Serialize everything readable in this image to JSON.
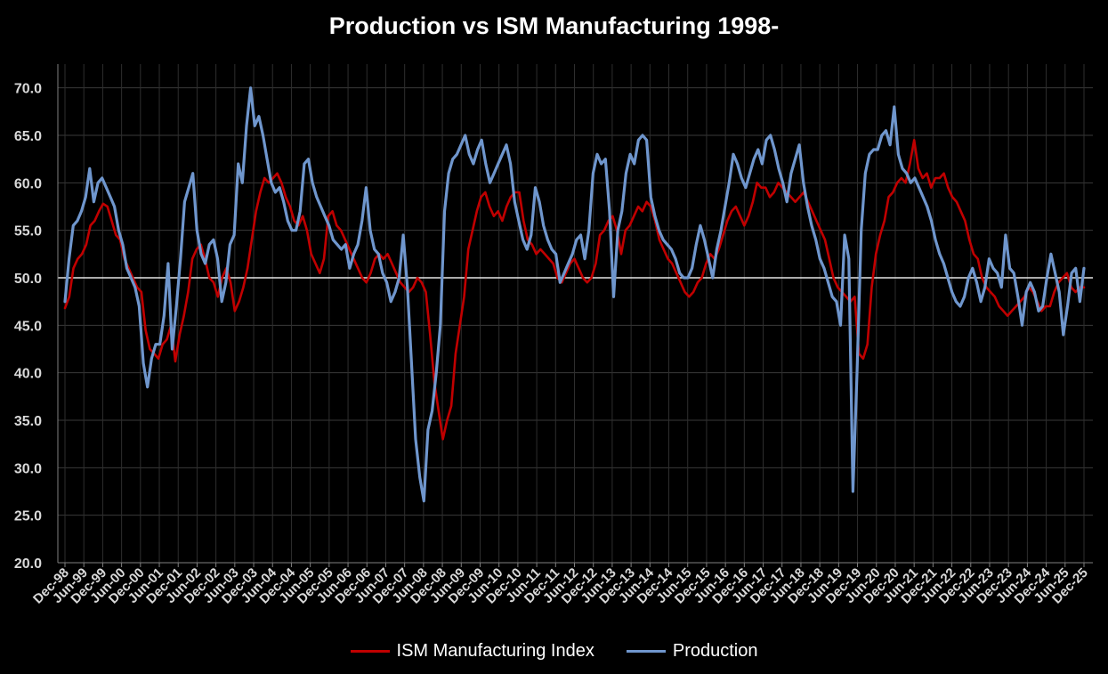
{
  "chart_data": {
    "type": "line",
    "title": "Production vs ISM Manufacturing 1998-",
    "xlabel": "",
    "ylabel": "",
    "ylim": [
      20,
      72.5
    ],
    "yticks": [
      "20.0",
      "25.0",
      "30.0",
      "35.0",
      "40.0",
      "45.0",
      "50.0",
      "55.0",
      "60.0",
      "65.0",
      "70.0"
    ],
    "reference_line": 50,
    "grid": true,
    "x_start": "Dec-98",
    "x_end": "Dec-25",
    "xticks": [
      "Dec-98",
      "Jun-99",
      "Dec-99",
      "Jun-00",
      "Dec-00",
      "Jun-01",
      "Dec-01",
      "Jun-02",
      "Dec-02",
      "Jun-03",
      "Dec-03",
      "Jun-04",
      "Dec-04",
      "Jun-05",
      "Dec-05",
      "Jun-06",
      "Dec-06",
      "Jun-07",
      "Dec-07",
      "Jun-08",
      "Dec-08",
      "Jun-09",
      "Dec-09",
      "Jun-10",
      "Dec-10",
      "Jun-11",
      "Dec-11",
      "Jun-12",
      "Dec-12",
      "Jun-13",
      "Dec-13",
      "Jun-14",
      "Dec-14",
      "Jun-15",
      "Dec-15",
      "Jun-16",
      "Dec-16",
      "Jun-17",
      "Dec-17",
      "Jun-18",
      "Dec-18",
      "Jun-19",
      "Dec-19",
      "Jun-20",
      "Dec-20",
      "Jun-21",
      "Dec-21",
      "Jun-22",
      "Dec-22",
      "Jun-23",
      "Dec-23",
      "Jun-24",
      "Dec-24",
      "Jun-25",
      "Dec-25"
    ],
    "legend_position": "bottom-center",
    "series": [
      {
        "name": "ISM Manufacturing Index",
        "color": "#c00000",
        "values": [
          46.8,
          48.0,
          51.0,
          52.0,
          52.5,
          53.5,
          55.5,
          56.0,
          57.0,
          57.8,
          57.5,
          56.0,
          54.5,
          54.0,
          52.0,
          51.0,
          50.0,
          49.0,
          48.5,
          44.5,
          42.5,
          42.0,
          41.5,
          43.0,
          43.5,
          45.0,
          41.2,
          44.0,
          46.0,
          48.5,
          52.0,
          53.0,
          53.5,
          52.0,
          50.0,
          49.5,
          48.0,
          50.0,
          51.0,
          49.5,
          46.5,
          47.5,
          49.0,
          51.0,
          54.0,
          57.0,
          59.0,
          60.5,
          60.0,
          60.5,
          61.0,
          60.0,
          58.5,
          57.5,
          56.0,
          55.5,
          56.5,
          55.0,
          52.5,
          51.5,
          50.5,
          52.0,
          56.5,
          57.0,
          55.5,
          55.0,
          54.0,
          53.0,
          52.0,
          51.0,
          50.0,
          49.5,
          50.5,
          52.0,
          52.5,
          52.0,
          52.5,
          51.5,
          50.5,
          49.5,
          49.0,
          48.5,
          49.0,
          50.0,
          49.5,
          48.5,
          44.0,
          39.0,
          36.0,
          33.0,
          35.0,
          36.5,
          42.0,
          45.0,
          48.0,
          53.0,
          55.0,
          57.0,
          58.5,
          59.0,
          57.5,
          56.5,
          57.0,
          56.0,
          57.5,
          58.5,
          59.0,
          59.0,
          56.0,
          54.0,
          53.5,
          52.5,
          53.0,
          52.5,
          52.0,
          51.5,
          50.0,
          49.5,
          50.5,
          51.5,
          52.0,
          51.0,
          50.0,
          49.5,
          50.0,
          51.5,
          54.5,
          55.0,
          56.0,
          56.5,
          55.0,
          52.5,
          55.0,
          55.5,
          56.5,
          57.5,
          57.0,
          58.0,
          57.5,
          56.0,
          54.0,
          53.0,
          52.0,
          51.5,
          50.5,
          49.5,
          48.5,
          48.0,
          48.5,
          49.5,
          50.0,
          51.5,
          52.5,
          52.0,
          53.0,
          54.5,
          56.0,
          57.0,
          57.5,
          56.5,
          55.5,
          56.5,
          58.0,
          60.0,
          59.5,
          59.5,
          58.5,
          59.0,
          60.0,
          59.5,
          59.0,
          58.5,
          58.0,
          58.5,
          59.0,
          58.0,
          57.0,
          56.0,
          55.0,
          54.0,
          52.0,
          50.0,
          49.0,
          48.5,
          48.0,
          47.5,
          48.0,
          42.0,
          41.5,
          43.0,
          49.0,
          52.5,
          54.5,
          56.0,
          58.5,
          59.0,
          60.0,
          60.5,
          60.0,
          62.0,
          64.5,
          61.5,
          60.5,
          61.0,
          59.5,
          60.5,
          60.5,
          61.0,
          59.5,
          58.5,
          58.0,
          57.0,
          56.0,
          54.0,
          52.5,
          52.0,
          50.0,
          49.0,
          48.5,
          48.0,
          47.0,
          46.5,
          46.0,
          46.5,
          47.0,
          47.5,
          48.0,
          49.0,
          48.5,
          47.5,
          46.5,
          47.0,
          47.0,
          48.5,
          49.5,
          50.0,
          50.5,
          49.0,
          48.5,
          49.0,
          49.0
        ]
      },
      {
        "name": "Production",
        "color": "#6f96cd",
        "values": [
          47.5,
          52.0,
          55.5,
          56.0,
          57.0,
          58.5,
          61.5,
          58.0,
          60.0,
          60.5,
          59.5,
          58.5,
          57.5,
          55.0,
          53.5,
          51.0,
          50.0,
          49.0,
          47.0,
          41.0,
          38.5,
          41.5,
          43.0,
          43.0,
          46.0,
          51.5,
          42.5,
          47.0,
          52.0,
          58.0,
          59.5,
          61.0,
          55.0,
          52.5,
          51.5,
          53.5,
          54.0,
          52.0,
          47.5,
          49.5,
          53.5,
          54.5,
          62.0,
          60.0,
          66.0,
          70.0,
          66.0,
          67.0,
          65.0,
          62.5,
          60.0,
          59.0,
          59.5,
          58.0,
          56.0,
          55.0,
          55.0,
          57.0,
          62.0,
          62.5,
          60.0,
          58.5,
          57.5,
          56.5,
          55.5,
          54.0,
          53.5,
          53.0,
          53.5,
          51.0,
          52.5,
          53.5,
          56.0,
          59.5,
          55.0,
          53.0,
          52.5,
          50.5,
          49.5,
          47.5,
          48.5,
          50.0,
          54.5,
          49.0,
          41.0,
          33.0,
          29.0,
          26.5,
          34.0,
          36.0,
          40.0,
          45.0,
          57.0,
          61.0,
          62.5,
          63.0,
          64.0,
          65.0,
          63.0,
          62.0,
          63.5,
          64.5,
          62.0,
          60.0,
          61.0,
          62.0,
          63.0,
          64.0,
          62.0,
          58.0,
          56.0,
          54.0,
          53.0,
          54.5,
          59.5,
          58.0,
          55.5,
          54.0,
          53.0,
          52.5,
          49.5,
          50.5,
          51.5,
          52.5,
          54.0,
          54.5,
          52.0,
          55.0,
          61.0,
          63.0,
          62.0,
          62.5,
          57.0,
          48.0,
          55.0,
          57.0,
          61.0,
          63.0,
          62.0,
          64.5,
          65.0,
          64.5,
          58.5,
          56.5,
          55.0,
          54.0,
          53.5,
          53.0,
          52.0,
          50.5,
          50.0,
          50.0,
          51.0,
          53.5,
          55.5,
          54.0,
          52.0,
          50.0,
          53.0,
          55.0,
          57.5,
          60.0,
          63.0,
          62.0,
          60.5,
          59.5,
          61.0,
          62.5,
          63.5,
          62.0,
          64.5,
          65.0,
          63.5,
          61.5,
          60.0,
          58.0,
          61.0,
          62.5,
          64.0,
          60.0,
          57.5,
          55.5,
          54.0,
          52.0,
          51.0,
          49.5,
          48.0,
          47.5,
          45.0,
          54.5,
          52.0,
          27.5,
          40.0,
          55.0,
          61.0,
          63.0,
          63.5,
          63.5,
          65.0,
          65.5,
          64.0,
          68.0,
          63.0,
          61.5,
          61.0,
          60.0,
          60.5,
          59.5,
          58.5,
          57.5,
          56.0,
          54.0,
          52.5,
          51.5,
          50.0,
          48.5,
          47.5,
          47.0,
          48.0,
          50.0,
          51.0,
          49.5,
          47.5,
          49.0,
          52.0,
          51.0,
          50.5,
          49.0,
          54.5,
          51.0,
          50.5,
          48.0,
          45.0,
          48.5,
          49.5,
          48.5,
          46.5,
          47.0,
          50.0,
          52.5,
          50.5,
          48.5,
          44.0,
          47.0,
          50.5,
          51.0,
          47.5,
          51.0
        ]
      }
    ]
  }
}
